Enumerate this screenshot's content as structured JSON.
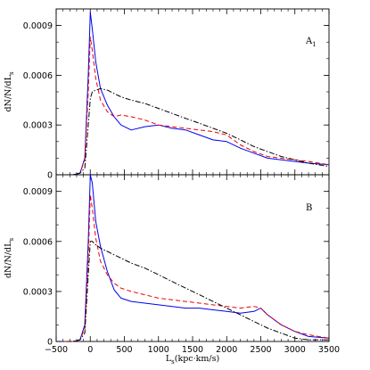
{
  "chart_data": [
    {
      "type": "line",
      "panel_label": "A",
      "panel_subscript": "1",
      "ylabel": "dN/N/dL",
      "ylabel_subscript": "s",
      "xlabel": "",
      "xlim": [
        -500,
        3500
      ],
      "ylim": [
        0,
        0.001
      ],
      "yticks": [
        {
          "value": 0,
          "label": "0"
        },
        {
          "value": 0.0003,
          "label": "0.0003"
        },
        {
          "value": 0.0006,
          "label": "0.0006"
        },
        {
          "value": 0.0009,
          "label": "0.0009"
        }
      ],
      "grid": false,
      "series": [
        {
          "color": "#0000ee",
          "style": "solid",
          "x": [
            -500,
            -250,
            -150,
            -80,
            -30,
            0,
            30,
            80,
            150,
            250,
            350,
            450,
            600,
            800,
            1000,
            1200,
            1400,
            1600,
            1800,
            2000,
            2200,
            2400,
            2600,
            2800,
            3000,
            3200,
            3500
          ],
          "y": [
            0,
            0,
            1e-05,
            0.0001,
            0.0006,
            0.00098,
            0.00088,
            0.00068,
            0.00052,
            0.00042,
            0.00035,
            0.0003,
            0.00027,
            0.00029,
            0.0003,
            0.00028,
            0.00027,
            0.00024,
            0.00021,
            0.0002,
            0.00016,
            0.00013,
            0.0001,
            9e-05,
            8e-05,
            7e-05,
            6e-05
          ]
        },
        {
          "color": "#ee0000",
          "style": "dashed",
          "x": [
            -500,
            -250,
            -150,
            -80,
            -30,
            0,
            30,
            80,
            150,
            250,
            350,
            450,
            600,
            800,
            1000,
            1200,
            1400,
            1600,
            1800,
            2000,
            2200,
            2400,
            2600,
            2800,
            3000,
            3200,
            3500
          ],
          "y": [
            0,
            0,
            1e-05,
            9e-05,
            0.0005,
            0.00083,
            0.00075,
            0.00058,
            0.00045,
            0.00038,
            0.00035,
            0.00036,
            0.00035,
            0.00033,
            0.0003,
            0.00029,
            0.00028,
            0.00027,
            0.00026,
            0.00024,
            0.00018,
            0.00014,
            0.00011,
            0.0001,
            9e-05,
            8e-05,
            6e-05
          ]
        },
        {
          "color": "#000000",
          "style": "dashdot",
          "x": [
            -500,
            -250,
            -150,
            -80,
            -30,
            0,
            30,
            80,
            150,
            250,
            350,
            450,
            600,
            800,
            1000,
            1200,
            1400,
            1600,
            1800,
            2000,
            2200,
            2400,
            2600,
            2800,
            3000,
            3200,
            3500
          ],
          "y": [
            0,
            0,
            1e-05,
            4e-05,
            0.0003,
            0.00046,
            0.0005,
            0.00051,
            0.00052,
            0.00051,
            0.00049,
            0.00047,
            0.00045,
            0.00043,
            0.0004,
            0.00037,
            0.00034,
            0.00031,
            0.00028,
            0.00025,
            0.00021,
            0.00017,
            0.00014,
            0.00011,
            9e-05,
            7e-05,
            5e-05
          ]
        }
      ]
    },
    {
      "type": "line",
      "panel_label": "B",
      "panel_subscript": "",
      "ylabel": "dN/N/dL",
      "ylabel_subscript": "s",
      "xlabel": "L",
      "xlabel_subscript": "s",
      "xlabel_suffix": "(kpc·km/s)",
      "xlim": [
        -500,
        3500
      ],
      "ylim": [
        0,
        0.001
      ],
      "xticks": [
        {
          "value": -500,
          "label": "−500"
        },
        {
          "value": 0,
          "label": "0"
        },
        {
          "value": 500,
          "label": "500"
        },
        {
          "value": 1000,
          "label": "1000"
        },
        {
          "value": 1500,
          "label": "1500"
        },
        {
          "value": 2000,
          "label": "2000"
        },
        {
          "value": 2500,
          "label": "2500"
        },
        {
          "value": 3000,
          "label": "3000"
        },
        {
          "value": 3500,
          "label": "3500"
        }
      ],
      "yticks": [
        {
          "value": 0,
          "label": "0"
        },
        {
          "value": 0.0003,
          "label": "0.0003"
        },
        {
          "value": 0.0006,
          "label": "0.0006"
        },
        {
          "value": 0.0009,
          "label": "0.0009"
        }
      ],
      "grid": false,
      "series": [
        {
          "color": "#0000ee",
          "style": "solid",
          "x": [
            -500,
            -250,
            -150,
            -80,
            -30,
            0,
            30,
            80,
            150,
            250,
            350,
            450,
            600,
            800,
            1000,
            1200,
            1400,
            1600,
            1800,
            2000,
            2200,
            2400,
            2500,
            2600,
            2800,
            3000,
            3200,
            3500
          ],
          "y": [
            0,
            0,
            1e-05,
            0.0001,
            0.0006,
            0.001,
            0.00095,
            0.00072,
            0.00057,
            0.00042,
            0.00031,
            0.00026,
            0.00024,
            0.00023,
            0.00022,
            0.00021,
            0.0002,
            0.0002,
            0.00019,
            0.00018,
            0.00017,
            0.00018,
            0.0002,
            0.00016,
            0.0001,
            6e-05,
            3e-05,
            2e-05
          ]
        },
        {
          "color": "#ee0000",
          "style": "dashed",
          "x": [
            -500,
            -250,
            -150,
            -80,
            -30,
            0,
            30,
            80,
            150,
            250,
            350,
            450,
            600,
            800,
            1000,
            1200,
            1400,
            1600,
            1800,
            2000,
            2200,
            2400,
            2500,
            2600,
            2800,
            3000,
            3200,
            3500
          ],
          "y": [
            0,
            0,
            1e-05,
            8e-05,
            0.0005,
            0.00088,
            0.0008,
            0.00062,
            0.00048,
            0.0004,
            0.00035,
            0.00032,
            0.0003,
            0.00028,
            0.00026,
            0.00025,
            0.00024,
            0.00023,
            0.00022,
            0.00021,
            0.0002,
            0.00021,
            0.0002,
            0.00016,
            0.0001,
            6e-05,
            4e-05,
            2e-05
          ]
        },
        {
          "color": "#000000",
          "style": "dashdot",
          "x": [
            -500,
            -250,
            -150,
            -80,
            -30,
            0,
            30,
            80,
            150,
            250,
            350,
            450,
            600,
            800,
            1000,
            1200,
            1400,
            1600,
            1800,
            2000,
            2200,
            2400,
            2500,
            2600,
            2800,
            3000,
            3200,
            3500
          ],
          "y": [
            0,
            0,
            1e-05,
            5e-05,
            0.0004,
            0.0006,
            0.0006,
            0.00058,
            0.00056,
            0.00054,
            0.00052,
            0.0005,
            0.00047,
            0.00044,
            0.0004,
            0.00036,
            0.00032,
            0.00028,
            0.00024,
            0.0002,
            0.00016,
            0.00012,
            0.0001,
            8e-05,
            5e-05,
            2e-05,
            1e-05,
            1e-05
          ]
        }
      ]
    }
  ]
}
